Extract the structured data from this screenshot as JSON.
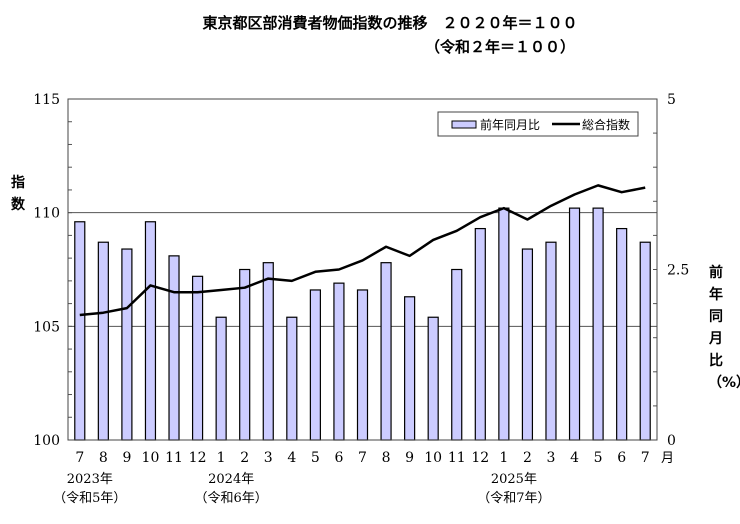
{
  "chart_data": {
    "type": "bar+line",
    "title": "東京都区部消費者物価指数の推移　２０２０年＝１００",
    "subtitle": "（令和２年＝１００）",
    "ylabel_left": "指数",
    "ylabel_right": "前年同月比（%）",
    "xlabel_unit": "月",
    "ylim_left": [
      100,
      115
    ],
    "ylim_right": [
      0,
      5
    ],
    "yticks_left": [
      "100",
      "105",
      "110",
      "115"
    ],
    "yticks_right": [
      "0",
      "2.5",
      "5"
    ],
    "legend": {
      "placement": "top-right",
      "bar_label": "前年同月比",
      "line_label": "総合指数"
    },
    "categories": [
      "7",
      "8",
      "9",
      "10",
      "11",
      "12",
      "1",
      "2",
      "3",
      "4",
      "5",
      "6",
      "7",
      "8",
      "9",
      "10",
      "11",
      "12",
      "1",
      "2",
      "3",
      "4",
      "5",
      "6",
      "7"
    ],
    "year_labels": [
      {
        "index": 0,
        "year": "2023年",
        "era": "（令和5年）"
      },
      {
        "index": 6,
        "year": "2024年",
        "era": "（令和6年）"
      },
      {
        "index": 18,
        "year": "2025年",
        "era": "（令和7年）"
      }
    ],
    "series": [
      {
        "name": "前年同月比",
        "type": "bar",
        "axis": "right",
        "color": "#ccccff",
        "values": [
          3.2,
          2.9,
          2.8,
          3.2,
          2.7,
          2.4,
          1.8,
          2.5,
          2.6,
          1.8,
          2.2,
          2.3,
          2.2,
          2.6,
          2.1,
          1.8,
          2.5,
          3.1,
          3.4,
          2.8,
          2.9,
          3.4,
          3.4,
          3.1,
          2.9
        ]
      },
      {
        "name": "総合指数",
        "type": "line",
        "axis": "left",
        "color": "#000000",
        "values": [
          105.5,
          105.6,
          105.8,
          106.8,
          106.5,
          106.5,
          106.6,
          106.7,
          107.1,
          107.0,
          107.4,
          107.5,
          107.9,
          108.5,
          108.1,
          108.8,
          109.2,
          109.8,
          110.2,
          109.7,
          110.3,
          110.8,
          111.2,
          110.9,
          111.1
        ]
      }
    ]
  }
}
